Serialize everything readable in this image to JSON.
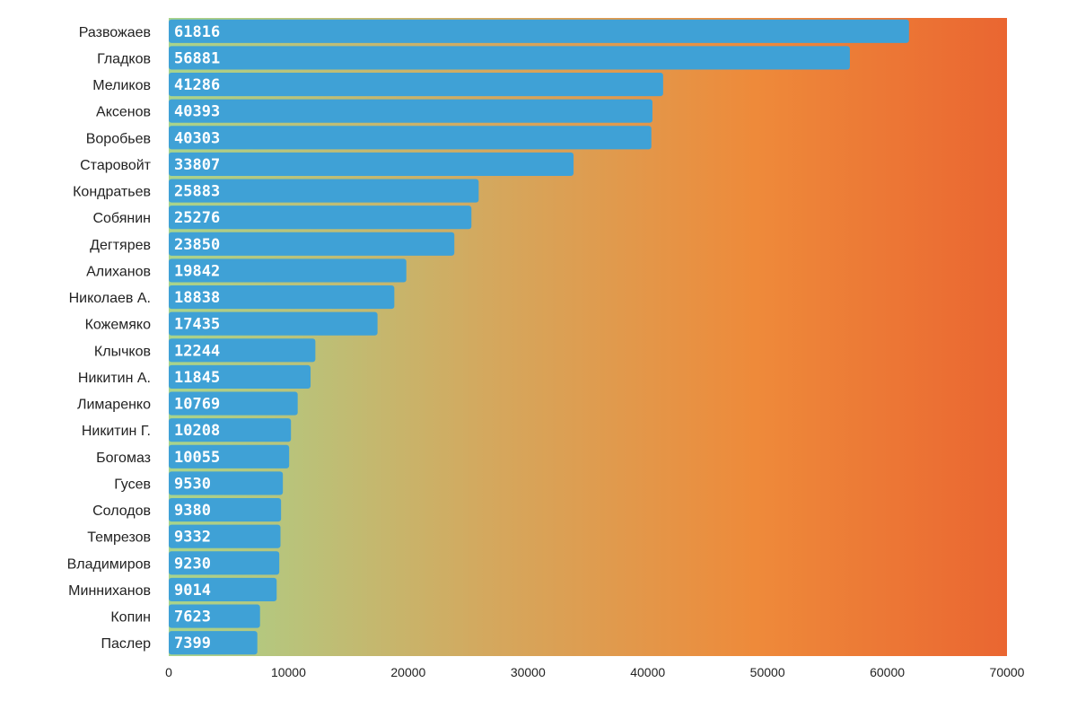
{
  "chart_data": {
    "type": "bar",
    "orientation": "horizontal",
    "categories": [
      "Развожаев",
      "Гладков",
      "Меликов",
      "Аксенов",
      "Воробьев",
      "Старовойт",
      "Кондратьев",
      "Собянин",
      "Дегтярев",
      "Алиханов",
      "Николаев А.",
      "Кожемяко",
      "Клычков",
      "Никитин А.",
      "Лимаренко",
      "Никитин Г.",
      "Богомаз",
      "Гусев",
      "Солодов",
      "Темрезов",
      "Владимиров",
      "Минниханов",
      "Копин",
      "Паслер"
    ],
    "values": [
      61816,
      56881,
      41286,
      40393,
      40303,
      33807,
      25883,
      25276,
      23850,
      19842,
      18838,
      17435,
      12244,
      11845,
      10769,
      10208,
      10055,
      9530,
      9380,
      9332,
      9230,
      9014,
      7623,
      7399
    ],
    "data_labels": [
      "61816",
      "56881",
      "41286",
      "40393",
      "40303",
      "33807",
      "25883",
      "25276",
      "23850",
      "19842",
      "18838",
      "17435",
      "12244",
      "11845",
      "10769",
      "10208",
      "10055",
      "9530",
      "9380",
      "9332",
      "9230",
      "9014",
      "7623",
      "7399"
    ],
    "x_ticks": [
      "0",
      "10000",
      "20000",
      "30000",
      "40000",
      "50000",
      "60000",
      "70000"
    ],
    "xlim": [
      0,
      70000
    ],
    "grid": false,
    "colors": {
      "bar": "#3fa1d6",
      "background_gradient": [
        "#a8d48c",
        "#d4a85e",
        "#ee8a3a",
        "#ea6631"
      ]
    }
  }
}
